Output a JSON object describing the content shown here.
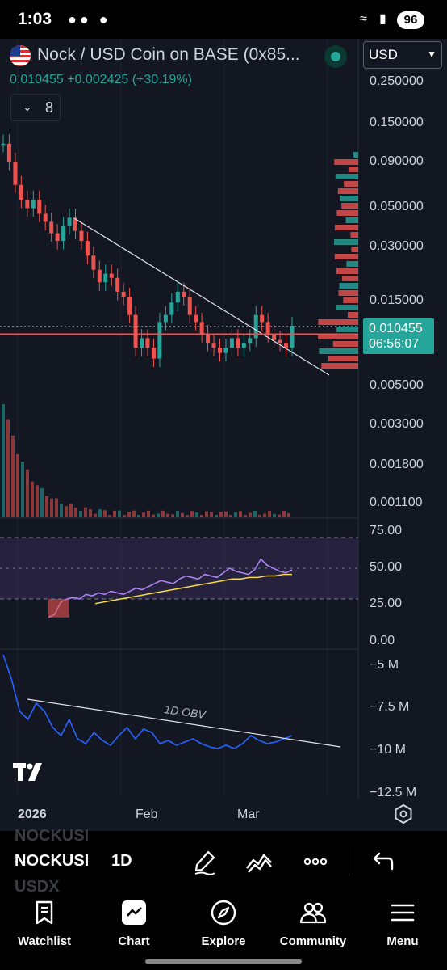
{
  "status_bar": {
    "time": "1:03",
    "battery": "96"
  },
  "header": {
    "symbol_title": "Nock / USD Coin on BASE (0x85...",
    "currency": "USD",
    "last_price": "0.010455",
    "change_abs": "+0.002425",
    "change_pct": "(+30.19%)",
    "indicators_count": "8"
  },
  "price_axis": {
    "labels": [
      "0.250000",
      "0.150000",
      "0.090000",
      "0.050000",
      "0.030000",
      "0.015000",
      "0.005000",
      "0.003000",
      "0.001800",
      "0.001100"
    ],
    "price_tag": "0.010455",
    "countdown": "06:56:07"
  },
  "rsi_axis": {
    "labels": [
      "75.00",
      "50.00",
      "25.00",
      "0.00"
    ]
  },
  "obv_panel": {
    "labels": [
      "−5 M",
      "−7.5 M",
      "−10 M",
      "−12.5 M"
    ],
    "annotation": "1D OBV"
  },
  "time_axis": {
    "labels": [
      "2026",
      "Feb",
      "Mar"
    ]
  },
  "toolbar": {
    "ghost_top": "NOCKUSI",
    "symbol": "NOCKUSI",
    "interval": "1D",
    "ghost_bottom": "USDX"
  },
  "nav": {
    "items": [
      {
        "label": "Watchlist",
        "icon": "bookmark-icon"
      },
      {
        "label": "Chart",
        "icon": "chart-icon"
      },
      {
        "label": "Explore",
        "icon": "compass-icon"
      },
      {
        "label": "Community",
        "icon": "people-icon"
      },
      {
        "label": "Menu",
        "icon": "hamburger-icon"
      }
    ]
  },
  "colors": {
    "up": "#26a69a",
    "down": "#ef5350",
    "background": "#131722",
    "rsi": "#b388ff",
    "rsi_ma": "#f5d94a",
    "obv": "#2962ff"
  },
  "chart_data": {
    "type": "candlestick",
    "scale": "log",
    "ylim": [
      0.001,
      0.3
    ],
    "last_price": 0.010455,
    "price_series_approx": [
      0.1,
      0.08,
      0.06,
      0.05,
      0.045,
      0.05,
      0.042,
      0.038,
      0.033,
      0.03,
      0.036,
      0.04,
      0.034,
      0.03,
      0.025,
      0.021,
      0.018,
      0.02,
      0.019,
      0.016,
      0.015,
      0.012,
      0.008,
      0.009,
      0.008,
      0.007,
      0.011,
      0.012,
      0.014,
      0.016,
      0.015,
      0.012,
      0.011,
      0.0095,
      0.0085,
      0.008,
      0.0075,
      0.008,
      0.009,
      0.008,
      0.0085,
      0.009,
      0.012,
      0.011,
      0.0095,
      0.0088,
      0.0085,
      0.008,
      0.0105
    ],
    "rsi_ylim": [
      0,
      80
    ],
    "rsi_levels": [
      70,
      30
    ],
    "rsi_approx": [
      18,
      20,
      28,
      30,
      31,
      30,
      33,
      32,
      34,
      33,
      35,
      34,
      33,
      35,
      37,
      36,
      38,
      40,
      42,
      41,
      40,
      43,
      45,
      44,
      43,
      46,
      45,
      44,
      47,
      50,
      48,
      47,
      46,
      49,
      56,
      52,
      50,
      48,
      47,
      49
    ],
    "rsi_ma_approx": [
      27,
      28,
      29,
      30,
      31,
      32,
      33,
      34,
      35,
      36,
      37,
      38,
      39,
      40,
      41,
      42,
      43,
      43,
      44,
      44,
      45,
      45,
      46,
      46
    ],
    "obv_ylim": [
      -13,
      -4
    ],
    "obv_millions_approx": [
      -4.0,
      -5.5,
      -7.5,
      -8.0,
      -7.0,
      -7.5,
      -8.5,
      -9.0,
      -8.0,
      -9.2,
      -9.5,
      -8.8,
      -9.3,
      -9.6,
      -9.0,
      -8.5,
      -9.2,
      -8.6,
      -8.8,
      -9.5,
      -9.3,
      -9.6,
      -9.4,
      -9.2,
      -9.5,
      -9.7,
      -9.8,
      -9.6,
      -9.8,
      -9.5,
      -9.0,
      -9.3,
      -9.5,
      -9.4,
      -9.2,
      -9.0
    ]
  }
}
